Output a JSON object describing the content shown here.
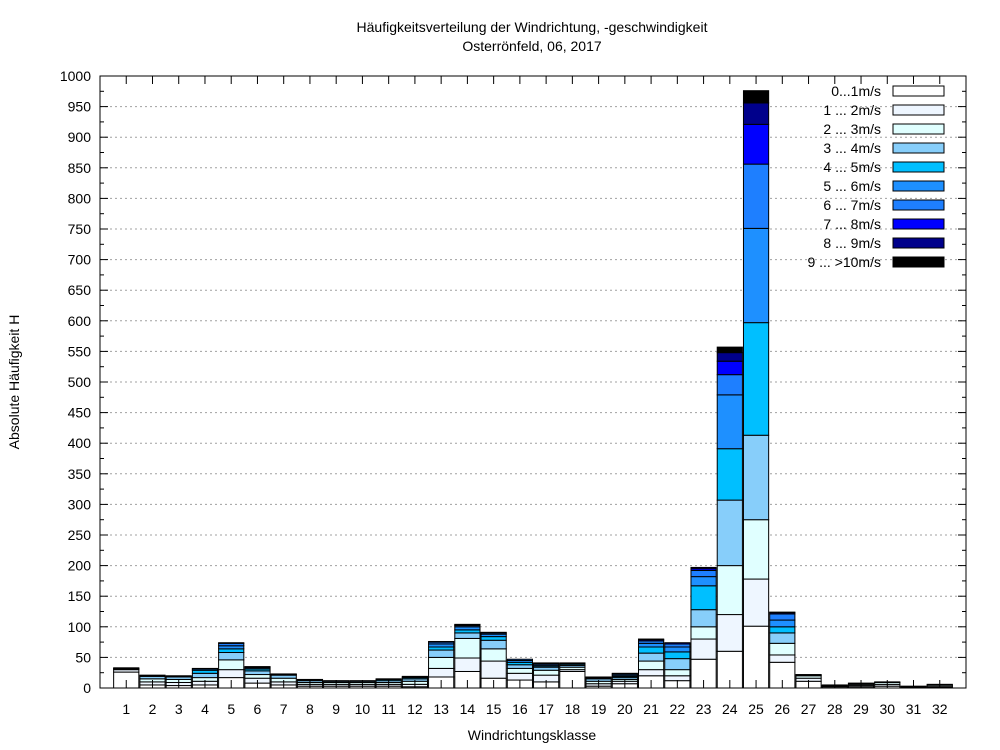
{
  "chart_data": {
    "type": "bar",
    "stacked": true,
    "title": "Häufigkeitsverteilung der Windrichtung, -geschwindigkeit",
    "subtitle": "Osterrönfeld, 06, 2017",
    "xlabel": "Windrichtungsklasse",
    "ylabel": "Absolute Häufigkeit H",
    "ylim": [
      0,
      1000
    ],
    "ytick_step": 50,
    "ytick_labels": [
      "0",
      "50",
      "100",
      "150",
      "200",
      "250",
      "300",
      "350",
      "400",
      "450",
      "500",
      "550",
      "600",
      "650",
      "700",
      "750",
      "800",
      "850",
      "900",
      "950",
      "1000"
    ],
    "grid": true,
    "legend_position": "top-right",
    "categories": [
      "1",
      "2",
      "3",
      "4",
      "5",
      "6",
      "7",
      "8",
      "9",
      "10",
      "11",
      "12",
      "13",
      "14",
      "15",
      "16",
      "17",
      "18",
      "19",
      "20",
      "21",
      "22",
      "23",
      "24",
      "25",
      "26",
      "27",
      "28",
      "29",
      "30",
      "31",
      "32"
    ],
    "series": [
      {
        "name": "0...1m/s",
        "color": "#ffffff",
        "values": [
          26,
          5,
          4,
          5,
          17,
          8,
          5,
          3,
          3,
          3,
          3,
          2,
          18,
          27,
          16,
          13,
          10,
          27,
          3,
          7,
          20,
          12,
          47,
          60,
          101,
          42,
          11,
          2,
          2,
          3,
          0,
          1
        ]
      },
      {
        "name": "1 ... 2m/s",
        "color": "#eef6ff",
        "values": [
          4,
          5,
          5,
          6,
          13,
          8,
          5,
          3,
          3,
          3,
          3,
          4,
          14,
          22,
          28,
          11,
          11,
          3,
          4,
          4,
          10,
          8,
          33,
          60,
          77,
          12,
          5,
          1,
          2,
          3,
          1,
          2
        ]
      },
      {
        "name": "2 ... 3m/s",
        "color": "#e0ffff",
        "values": [
          1,
          5,
          5,
          6,
          16,
          6,
          6,
          3,
          3,
          3,
          3,
          5,
          18,
          32,
          20,
          8,
          8,
          4,
          4,
          3,
          14,
          10,
          20,
          80,
          97,
          19,
          4,
          1,
          2,
          3,
          1,
          2
        ]
      },
      {
        "name": "3 ... 4m/s",
        "color": "#87cefa",
        "values": [
          1,
          4,
          4,
          7,
          12,
          6,
          5,
          3,
          2,
          2,
          3,
          4,
          12,
          9,
          14,
          6,
          5,
          3,
          4,
          3,
          13,
          18,
          28,
          107,
          138,
          17,
          1,
          1,
          1,
          1,
          1,
          1
        ]
      },
      {
        "name": "4 ... 5m/s",
        "color": "#00bfff",
        "values": [
          1,
          1,
          1,
          5,
          6,
          3,
          1,
          1,
          1,
          1,
          2,
          2,
          5,
          5,
          6,
          4,
          2,
          2,
          1,
          2,
          10,
          11,
          39,
          84,
          184,
          10,
          1,
          0,
          1,
          0,
          0,
          0
        ]
      },
      {
        "name": "5 ... 6m/s",
        "color": "#1e90ff",
        "values": [
          0,
          1,
          1,
          2,
          5,
          2,
          1,
          1,
          0,
          0,
          1,
          1,
          5,
          5,
          4,
          3,
          2,
          1,
          1,
          2,
          6,
          8,
          15,
          88,
          154,
          11,
          0,
          0,
          0,
          0,
          0,
          0
        ]
      },
      {
        "name": "6 ... 7m/s",
        "color": "#1e7fff",
        "values": [
          0,
          0,
          0,
          1,
          4,
          1,
          0,
          0,
          0,
          0,
          0,
          1,
          3,
          2,
          2,
          2,
          2,
          1,
          1,
          2,
          4,
          5,
          10,
          33,
          105,
          10,
          0,
          0,
          0,
          0,
          0,
          0
        ]
      },
      {
        "name": "7 ... 8m/s",
        "color": "#0000ff",
        "values": [
          0,
          0,
          0,
          0,
          1,
          1,
          0,
          0,
          0,
          0,
          0,
          0,
          1,
          1,
          1,
          0,
          1,
          0,
          0,
          1,
          2,
          2,
          3,
          22,
          65,
          2,
          0,
          0,
          0,
          0,
          0,
          0
        ]
      },
      {
        "name": "8 ... 9m/s",
        "color": "#00008b",
        "values": [
          0,
          0,
          0,
          0,
          0,
          0,
          0,
          0,
          0,
          0,
          0,
          0,
          0,
          1,
          0,
          0,
          0,
          0,
          0,
          0,
          1,
          0,
          2,
          14,
          35,
          1,
          0,
          0,
          0,
          0,
          0,
          0
        ]
      },
      {
        "name": "9 ... >10m/s",
        "color": "#000000",
        "values": [
          0,
          0,
          0,
          0,
          0,
          0,
          0,
          0,
          0,
          0,
          0,
          0,
          0,
          0,
          0,
          0,
          0,
          0,
          0,
          0,
          0,
          0,
          0,
          9,
          20,
          0,
          0,
          0,
          0,
          0,
          0,
          0
        ]
      }
    ]
  }
}
